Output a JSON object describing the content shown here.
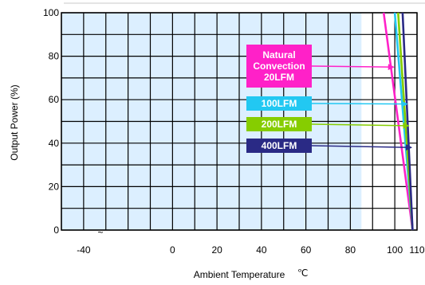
{
  "chart_data": {
    "type": "line",
    "title": "",
    "xlabel": "Ambient Temperature",
    "xlabel_unit": "℃",
    "ylabel": "Output Power  (%)",
    "xlim": [
      -50,
      110
    ],
    "ylim": [
      0,
      100
    ],
    "x_ticks": [
      -40,
      0,
      20,
      40,
      60,
      80,
      100,
      110
    ],
    "x_tick_labels": [
      "-40",
      "0",
      "20",
      "40",
      "60",
      "80",
      "100",
      "110"
    ],
    "x_break_marker": "~",
    "y_ticks": [
      0,
      20,
      40,
      60,
      80,
      100
    ],
    "y_tick_labels": [
      "0",
      "20",
      "40",
      "60",
      "80",
      "100"
    ],
    "grid": true,
    "shaded_region": {
      "x_start": -50,
      "x_end": 85,
      "color": "#dcefff"
    },
    "series": [
      {
        "name": "Natural Convection 20LFM",
        "color": "#ff21c8",
        "points": [
          [
            95,
            100
          ],
          [
            108,
            0
          ]
        ]
      },
      {
        "name": "100LFM",
        "color": "#22c8f2",
        "points": [
          [
            100,
            100
          ],
          [
            108,
            0
          ]
        ]
      },
      {
        "name": "200LFM",
        "color": "#86cd00",
        "points": [
          [
            101.5,
            100
          ],
          [
            108,
            0
          ]
        ]
      },
      {
        "name": "400LFM",
        "color": "#2a2a85",
        "points": [
          [
            103.5,
            100
          ],
          [
            108,
            0
          ]
        ]
      }
    ],
    "legend_boxes": [
      {
        "lines": [
          "Natural",
          "Convection",
          "20LFM"
        ],
        "color": "#ff21c8",
        "text_color": "#ffffff",
        "arrow_target": [
          99.5,
          75
        ]
      },
      {
        "lines": [
          "100LFM"
        ],
        "color": "#22c8f2",
        "text_color": "#ffffff",
        "arrow_target": [
          105.5,
          58
        ]
      },
      {
        "lines": [
          "200LFM"
        ],
        "color": "#86cd00",
        "text_color": "#ffffff",
        "arrow_target": [
          106.2,
          48
        ]
      },
      {
        "lines": [
          "400LFM"
        ],
        "color": "#2a2a85",
        "text_color": "#ffffff",
        "arrow_target": [
          107.5,
          38
        ]
      }
    ]
  }
}
